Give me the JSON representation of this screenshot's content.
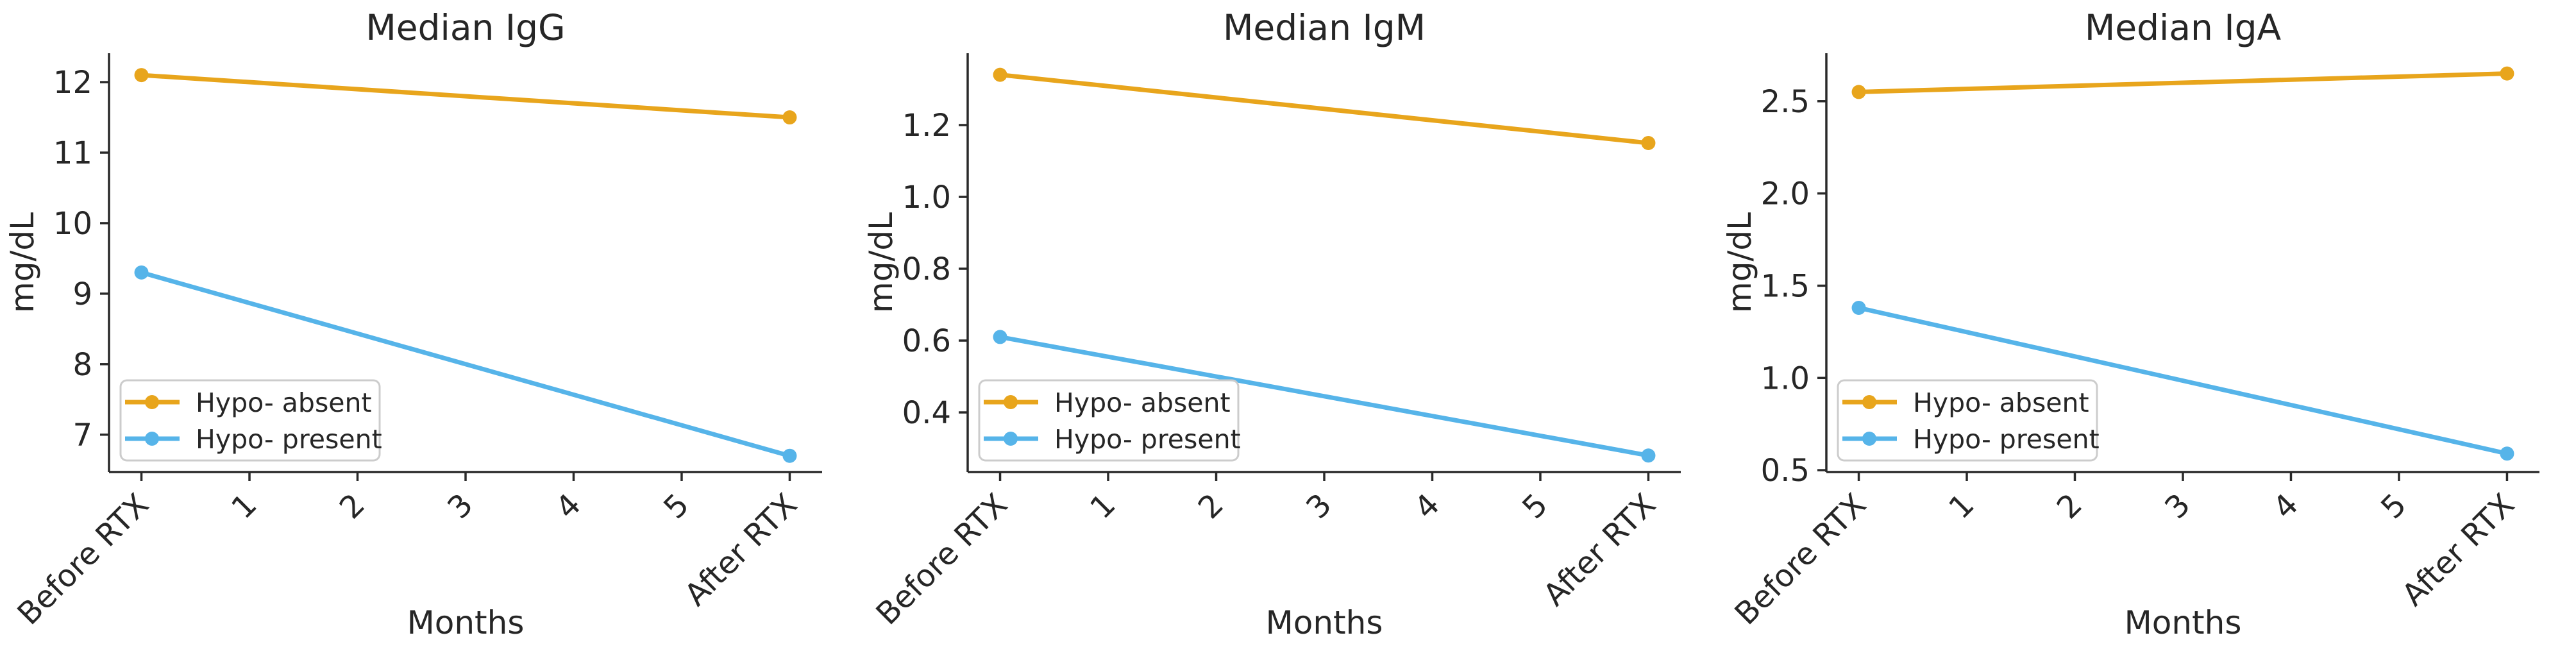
{
  "figure": {
    "background": "#ffffff",
    "text_color": "#262626",
    "axis_color": "#2a2a2a",
    "legend_border_color": "#cccccc",
    "accent_orange": "#e8a51c",
    "accent_blue": "#56b4e9"
  },
  "chart_data": [
    {
      "type": "line",
      "title": "Median IgG",
      "xlabel": "Months",
      "ylabel": "mg/dL",
      "categories": [
        "Before RTX",
        "1",
        "2",
        "3",
        "4",
        "5",
        "After RTX"
      ],
      "x_numeric": [
        0,
        1,
        2,
        3,
        4,
        5,
        6
      ],
      "xlim": [
        -0.3,
        6.3
      ],
      "ylim": [
        6.47,
        12.41
      ],
      "yticks": [
        7,
        8,
        9,
        10,
        11,
        12
      ],
      "ytick_labels": [
        "7",
        "8",
        "9",
        "10",
        "11",
        "12"
      ],
      "grid": false,
      "legend_position": "lower left",
      "series": [
        {
          "name": "Hypo- absent",
          "color": "#e8a51c",
          "x": [
            0,
            6
          ],
          "values": [
            12.1,
            11.5
          ]
        },
        {
          "name": "Hypo- present",
          "color": "#56b4e9",
          "x": [
            0,
            6
          ],
          "values": [
            9.3,
            6.7
          ]
        }
      ]
    },
    {
      "type": "line",
      "title": "Median IgM",
      "xlabel": "Months",
      "ylabel": "mg/dL",
      "categories": [
        "Before RTX",
        "1",
        "2",
        "3",
        "4",
        "5",
        "After RTX"
      ],
      "x_numeric": [
        0,
        1,
        2,
        3,
        4,
        5,
        6
      ],
      "xlim": [
        -0.3,
        6.3
      ],
      "ylim": [
        0.234,
        1.4
      ],
      "yticks": [
        0.4,
        0.6,
        0.8,
        1.0,
        1.2
      ],
      "ytick_labels": [
        "0.4",
        "0.6",
        "0.8",
        "1.0",
        "1.2"
      ],
      "grid": false,
      "legend_position": "lower left",
      "series": [
        {
          "name": "Hypo- absent",
          "color": "#e8a51c",
          "x": [
            0,
            6
          ],
          "values": [
            1.34,
            1.15
          ]
        },
        {
          "name": "Hypo- present",
          "color": "#56b4e9",
          "x": [
            0,
            6
          ],
          "values": [
            0.61,
            0.28
          ]
        }
      ]
    },
    {
      "type": "line",
      "title": "Median IgA",
      "xlabel": "Months",
      "ylabel": "mg/dL",
      "categories": [
        "Before RTX",
        "1",
        "2",
        "3",
        "4",
        "5",
        "After RTX"
      ],
      "x_numeric": [
        0,
        1,
        2,
        3,
        4,
        5,
        6
      ],
      "xlim": [
        -0.3,
        6.3
      ],
      "ylim": [
        0.49,
        2.76
      ],
      "yticks": [
        0.5,
        1.0,
        1.5,
        2.0,
        2.5
      ],
      "ytick_labels": [
        "0.5",
        "1.0",
        "1.5",
        "2.0",
        "2.5"
      ],
      "grid": false,
      "legend_position": "lower left",
      "series": [
        {
          "name": "Hypo- absent",
          "color": "#e8a51c",
          "x": [
            0,
            6
          ],
          "values": [
            2.55,
            2.65
          ]
        },
        {
          "name": "Hypo- present",
          "color": "#56b4e9",
          "x": [
            0,
            6
          ],
          "values": [
            1.38,
            0.59
          ]
        }
      ]
    }
  ]
}
